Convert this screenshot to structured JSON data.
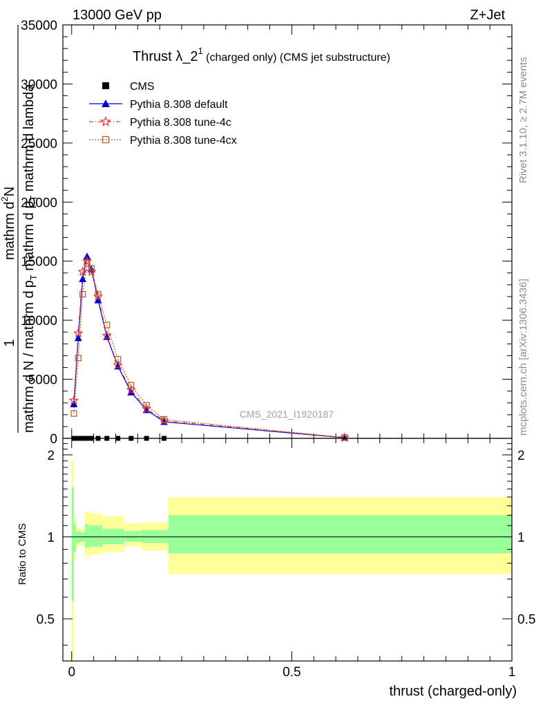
{
  "header": {
    "left": "13000 GeV pp",
    "right": "Z+Jet"
  },
  "title": {
    "main": "Thrust λ_2",
    "sup": "1",
    "suffix": " (charged only) (CMS jet substructure)"
  },
  "watermark": "CMS_2021_I1920187",
  "side_labels": {
    "rivet": "Rivet 3.1.10, ≥ 2.7M events",
    "mcplots": "mcplots.cern.ch [arXiv:1306.3436]"
  },
  "ylabel": {
    "one": "1",
    "numer": "mathrm d",
    "numer_sup": "2",
    "numer_tail": "N",
    "denom_main": "mathrm d N / mathrm d",
    "denom_pt": "p",
    "denom_pt_sub": "T",
    "denom_tail": " mathrm d p",
    "denom_tail_sub": "T",
    "denom_end": " mathrm d lambda"
  },
  "ratio_ylabel": "Ratio to CMS",
  "xlabel": "thrust (charged-only)",
  "legend": [
    {
      "label": "CMS",
      "color": "#000000",
      "marker": "square"
    },
    {
      "label": "Pythia 8.308 default",
      "color": "#0000cc",
      "marker": "triangle"
    },
    {
      "label": "Pythia 8.308 tune-4c",
      "color": "#dd3333",
      "marker": "star"
    },
    {
      "label": "Pythia 8.308 tune-4cx",
      "color": "#b0622f",
      "marker": "open-square"
    }
  ],
  "chart_data": {
    "type": "line",
    "xlim": [
      -0.02,
      1.0
    ],
    "ylim": [
      0,
      35000
    ],
    "xticks": [
      0,
      0.5,
      1
    ],
    "xtick_labels": [
      "0",
      "0.5",
      "1"
    ],
    "yticks": [
      0,
      5000,
      10000,
      15000,
      20000,
      25000,
      30000,
      35000
    ],
    "ytick_labels": [
      "0",
      "5000",
      "10000",
      "15000",
      "20000",
      "25000",
      "30000",
      "35000"
    ],
    "data_x": [
      0.005,
      0.015,
      0.025,
      0.035,
      0.045,
      0.06,
      0.08,
      0.105,
      0.135,
      0.17,
      0.21,
      0.62
    ],
    "cms": [
      0,
      0,
      0,
      0,
      0,
      0,
      0,
      0,
      0,
      0,
      0
    ],
    "cms_x": [
      0.005,
      0.015,
      0.025,
      0.035,
      0.045,
      0.06,
      0.08,
      0.105,
      0.135,
      0.17,
      0.21
    ],
    "series": [
      {
        "name": "Pythia 8.308 default",
        "color": "#0000cc",
        "values": [
          2900,
          8500,
          13500,
          15400,
          14300,
          11700,
          8600,
          6100,
          3900,
          2400,
          1400,
          50
        ]
      },
      {
        "name": "Pythia 8.308 tune-4c",
        "color": "#dd3333",
        "values": [
          3200,
          8900,
          14100,
          15000,
          14100,
          12000,
          8700,
          6200,
          4100,
          2500,
          1500,
          60
        ]
      },
      {
        "name": "Pythia 8.308 tune-4cx",
        "color": "#b0622f",
        "values": [
          2100,
          6800,
          12200,
          14800,
          14400,
          12200,
          9600,
          6700,
          4500,
          2800,
          1600,
          70
        ]
      }
    ],
    "ratio": {
      "ylim": [
        0.35,
        2.3
      ],
      "log": true,
      "yticks": [
        0.5,
        1,
        2
      ],
      "ytick_labels": [
        "0.5",
        "1",
        "2"
      ],
      "bands": [
        {
          "x0": 0.0,
          "x1": 0.005,
          "g_lo": 0.58,
          "g_hi": 1.52,
          "y_lo": 0.3,
          "y_hi": 1.9
        },
        {
          "x0": 0.005,
          "x1": 0.01,
          "g_lo": 0.88,
          "g_hi": 1.12,
          "y_lo": 0.82,
          "y_hi": 1.18
        },
        {
          "x0": 0.01,
          "x1": 0.02,
          "g_lo": 0.95,
          "g_hi": 1.05,
          "y_lo": 0.92,
          "y_hi": 1.08
        },
        {
          "x0": 0.02,
          "x1": 0.03,
          "g_lo": 0.96,
          "g_hi": 1.04,
          "y_lo": 0.93,
          "y_hi": 1.07
        },
        {
          "x0": 0.03,
          "x1": 0.04,
          "g_lo": 0.91,
          "g_hi": 1.11,
          "y_lo": 0.84,
          "y_hi": 1.24
        },
        {
          "x0": 0.04,
          "x1": 0.07,
          "g_lo": 0.92,
          "g_hi": 1.1,
          "y_lo": 0.86,
          "y_hi": 1.22
        },
        {
          "x0": 0.07,
          "x1": 0.12,
          "g_lo": 0.94,
          "g_hi": 1.07,
          "y_lo": 0.88,
          "y_hi": 1.19
        },
        {
          "x0": 0.12,
          "x1": 0.16,
          "g_lo": 0.96,
          "g_hi": 1.05,
          "y_lo": 0.92,
          "y_hi": 1.12
        },
        {
          "x0": 0.16,
          "x1": 0.22,
          "g_lo": 0.95,
          "g_hi": 1.06,
          "y_lo": 0.89,
          "y_hi": 1.13
        },
        {
          "x0": 0.22,
          "x1": 1.0,
          "g_lo": 0.87,
          "g_hi": 1.2,
          "y_lo": 0.73,
          "y_hi": 1.4
        }
      ]
    }
  }
}
